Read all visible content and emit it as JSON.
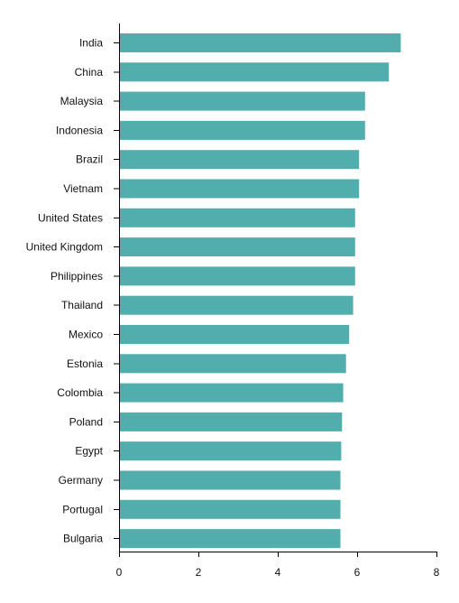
{
  "chart_data": {
    "type": "bar",
    "orientation": "horizontal",
    "categories": [
      "India",
      "China",
      "Malaysia",
      "Indonesia",
      "Brazil",
      "Vietnam",
      "United States",
      "United Kingdom",
      "Philippines",
      "Thailand",
      "Mexico",
      "Estonia",
      "Colombia",
      "Poland",
      "Egypt",
      "Germany",
      "Portugal",
      "Bulgaria"
    ],
    "values": [
      7.1,
      6.8,
      6.2,
      6.2,
      6.05,
      6.05,
      5.95,
      5.95,
      5.95,
      5.9,
      5.8,
      5.72,
      5.65,
      5.62,
      5.6,
      5.58,
      5.58,
      5.58
    ],
    "xlim": [
      0,
      8
    ],
    "xticks": [
      "0",
      "2",
      "4",
      "6",
      "8"
    ],
    "title": "",
    "xlabel": "",
    "ylabel": "",
    "grid": false,
    "legend": "none",
    "bar_color": "#52adad"
  }
}
